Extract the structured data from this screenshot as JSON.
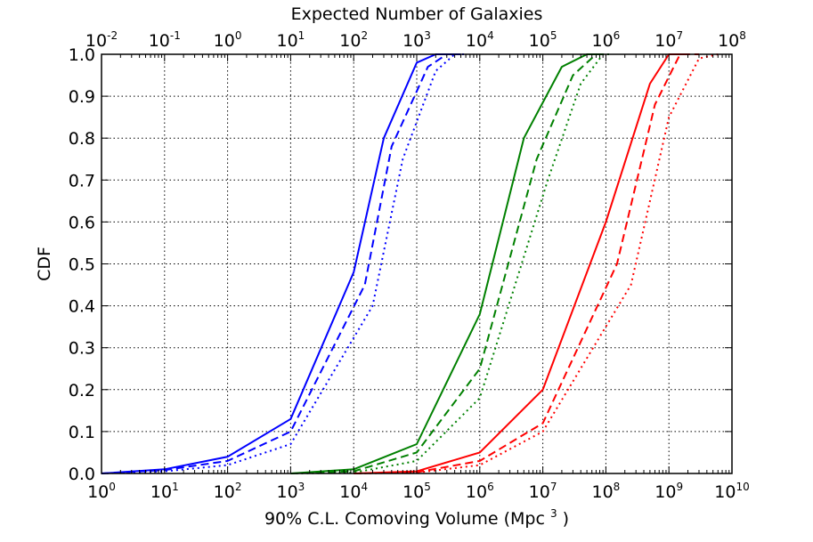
{
  "chart_data": {
    "type": "line",
    "title": "",
    "xlabel": "90% C.L. Comoving Volume (Mpc",
    "xlabel_sup": "3",
    "xlabel_suffix": " )",
    "ylabel": "CDF",
    "x2label": "Expected Number of Galaxies",
    "xscale": "log",
    "xlim": [
      1,
      10000000000
    ],
    "x2lim": [
      0.01,
      100000000
    ],
    "ylim": [
      0.0,
      1.0
    ],
    "grid": true,
    "legend": "none",
    "x_ticks": [
      {
        "base": "10",
        "exp": "0"
      },
      {
        "base": "10",
        "exp": "1"
      },
      {
        "base": "10",
        "exp": "2"
      },
      {
        "base": "10",
        "exp": "3"
      },
      {
        "base": "10",
        "exp": "4"
      },
      {
        "base": "10",
        "exp": "5"
      },
      {
        "base": "10",
        "exp": "6"
      },
      {
        "base": "10",
        "exp": "7"
      },
      {
        "base": "10",
        "exp": "8"
      },
      {
        "base": "10",
        "exp": "9"
      },
      {
        "base": "10",
        "exp": "10"
      }
    ],
    "x2_ticks": [
      {
        "base": "10",
        "exp": "-2"
      },
      {
        "base": "10",
        "exp": "-1"
      },
      {
        "base": "10",
        "exp": "0"
      },
      {
        "base": "10",
        "exp": "1"
      },
      {
        "base": "10",
        "exp": "2"
      },
      {
        "base": "10",
        "exp": "3"
      },
      {
        "base": "10",
        "exp": "4"
      },
      {
        "base": "10",
        "exp": "5"
      },
      {
        "base": "10",
        "exp": "6"
      },
      {
        "base": "10",
        "exp": "7"
      },
      {
        "base": "10",
        "exp": "8"
      }
    ],
    "y_ticks": [
      "0.0",
      "0.1",
      "0.2",
      "0.3",
      "0.4",
      "0.5",
      "0.6",
      "0.7",
      "0.8",
      "0.9",
      "1.0"
    ],
    "series": [
      {
        "color": "#0000ff",
        "style": "solid",
        "x": [
          1,
          10,
          100,
          1000,
          10000,
          30000,
          100000,
          200000,
          500000
        ],
        "y": [
          0.0,
          0.01,
          0.04,
          0.13,
          0.48,
          0.8,
          0.98,
          1.0,
          1.0
        ]
      },
      {
        "color": "#0000ff",
        "style": "dashed",
        "x": [
          1,
          10,
          100,
          1000,
          15000,
          40000,
          150000,
          300000,
          500000
        ],
        "y": [
          0.0,
          0.008,
          0.03,
          0.1,
          0.45,
          0.78,
          0.97,
          1.0,
          1.0
        ]
      },
      {
        "color": "#0000ff",
        "style": "dotted",
        "x": [
          1,
          10,
          100,
          1000,
          20000,
          60000,
          200000,
          400000,
          600000
        ],
        "y": [
          0.0,
          0.005,
          0.02,
          0.07,
          0.4,
          0.75,
          0.96,
          1.0,
          1.0
        ]
      },
      {
        "color": "#008000",
        "style": "solid",
        "x": [
          1000,
          10000,
          100000,
          1000000,
          5000000,
          20000000,
          50000000,
          80000000
        ],
        "y": [
          0.0,
          0.01,
          0.07,
          0.38,
          0.8,
          0.97,
          1.0,
          1.0
        ]
      },
      {
        "color": "#008000",
        "style": "dashed",
        "x": [
          1000,
          10000,
          100000,
          1000000,
          8000000,
          30000000,
          70000000,
          100000000
        ],
        "y": [
          0.0,
          0.005,
          0.05,
          0.25,
          0.75,
          0.95,
          1.0,
          1.0
        ]
      },
      {
        "color": "#008000",
        "style": "dotted",
        "x": [
          1000,
          10000,
          100000,
          1000000,
          12000000,
          40000000,
          90000000,
          120000000
        ],
        "y": [
          0.0,
          0.002,
          0.03,
          0.18,
          0.7,
          0.93,
          1.0,
          1.0
        ]
      },
      {
        "color": "#ff0000",
        "style": "solid",
        "x": [
          10000,
          100000,
          1000000,
          10000000,
          100000000,
          500000000,
          1000000000,
          2000000000
        ],
        "y": [
          0.0,
          0.005,
          0.05,
          0.2,
          0.6,
          0.93,
          1.0,
          1.0
        ]
      },
      {
        "color": "#ff0000",
        "style": "dashed",
        "x": [
          10000,
          100000,
          1000000,
          10000000,
          150000000,
          600000000,
          1500000000,
          3000000000
        ],
        "y": [
          0.0,
          0.003,
          0.03,
          0.12,
          0.5,
          0.88,
          1.0,
          1.0
        ]
      },
      {
        "color": "#ff0000",
        "style": "dotted",
        "x": [
          10000,
          100000,
          1000000,
          10000000,
          250000000,
          1000000000,
          3000000000,
          6000000000
        ],
        "y": [
          0.0,
          0.002,
          0.02,
          0.1,
          0.45,
          0.85,
          0.99,
          1.0
        ]
      }
    ]
  }
}
